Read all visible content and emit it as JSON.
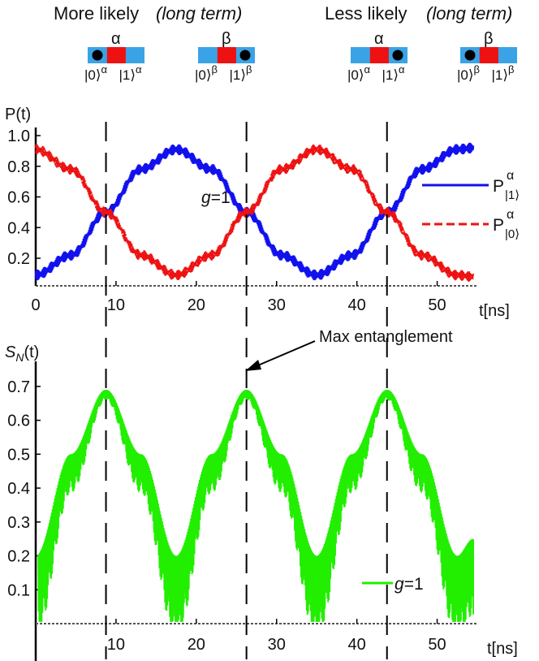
{
  "header": {
    "left": {
      "text": "More likely",
      "note": "(long term)"
    },
    "right": {
      "text": "Less likely",
      "note": "(long term)"
    }
  },
  "diagrams": [
    {
      "label": "α",
      "ket0": "|0⟩",
      "ket0_sup": "α",
      "ket1": "|1⟩",
      "ket1_sup": "α",
      "ball_state": "0"
    },
    {
      "label": "β",
      "ket0": "|0⟩",
      "ket0_sup": "β",
      "ket1": "|1⟩",
      "ket1_sup": "β",
      "ball_state": "1"
    },
    {
      "label": "α",
      "ket0": "|0⟩",
      "ket0_sup": "α",
      "ket1": "|1⟩",
      "ket1_sup": "α",
      "ball_state": "1"
    },
    {
      "label": "β",
      "ket0": "|0⟩",
      "ket0_sup": "β",
      "ket1": "|1⟩",
      "ket1_sup": "β",
      "ball_state": "0"
    }
  ],
  "colors": {
    "box_blue": "#3aa3e6",
    "box_red": "#ee1111",
    "ball": "#000000"
  },
  "chart_data": [
    {
      "type": "line",
      "ylabel": "P(t)",
      "xlabel": "t[ns]",
      "xlim": [
        0,
        55
      ],
      "ylim": [
        0.02,
        1.0
      ],
      "xticks": [
        "0",
        "10",
        "20",
        "30",
        "40",
        "50"
      ],
      "yticks": [
        "0.2",
        "0.4",
        "0.6",
        "0.8",
        "1.0"
      ],
      "annotation": "g=1",
      "period_ns": 35,
      "oscillation_band": 0.07,
      "series": [
        {
          "name": "P|1⟩α",
          "style": "solid",
          "color": "#1111ee",
          "x": [
            0,
            4.4,
            8.75,
            13.1,
            17.5,
            21.9,
            26.25,
            30.6,
            35,
            39.4,
            43.75,
            48.1,
            52.5,
            54.5
          ],
          "y": [
            0.09,
            0.22,
            0.5,
            0.78,
            0.91,
            0.78,
            0.5,
            0.22,
            0.09,
            0.22,
            0.5,
            0.78,
            0.91,
            0.92
          ]
        },
        {
          "name": "P|0⟩α",
          "style": "dashed",
          "color": "#ee1111",
          "x": [
            0,
            4.4,
            8.75,
            13.1,
            17.5,
            21.9,
            26.25,
            30.6,
            35,
            39.4,
            43.75,
            48.1,
            52.5,
            54.5
          ],
          "y": [
            0.91,
            0.78,
            0.5,
            0.22,
            0.09,
            0.22,
            0.5,
            0.78,
            0.91,
            0.78,
            0.5,
            0.22,
            0.09,
            0.08
          ]
        }
      ],
      "legend": [
        {
          "label": "P",
          "sub": "|1⟩",
          "sup": "α"
        },
        {
          "label": "P",
          "sub": "|0⟩",
          "sup": "α"
        }
      ]
    },
    {
      "type": "line",
      "ylabel": "S",
      "ylabel_sub": "N",
      "ylabel_suffix": "(t)",
      "xlabel": "t[ns]",
      "xlim": [
        0,
        55
      ],
      "ylim": [
        0.0,
        0.75
      ],
      "xticks": [
        "10",
        "20",
        "30",
        "40",
        "50"
      ],
      "yticks": [
        "0.1",
        "0.2",
        "0.3",
        "0.4",
        "0.5",
        "0.6",
        "0.7"
      ],
      "annotation": "Max entanglement",
      "series": [
        {
          "name": "g=1",
          "style": "solid",
          "color": "#22ee00",
          "x": [
            0,
            4.4,
            8.75,
            13.1,
            17.5,
            21.9,
            26.25,
            30.6,
            35,
            39.4,
            43.75,
            48.1,
            52.5,
            54.5
          ],
          "y": [
            0.2,
            0.5,
            0.69,
            0.5,
            0.2,
            0.5,
            0.69,
            0.5,
            0.2,
            0.5,
            0.69,
            0.5,
            0.2,
            0.25
          ]
        }
      ],
      "legend": [
        {
          "label": "g",
          "suffix": "=1"
        }
      ]
    }
  ],
  "guide_lines_ns": [
    8.75,
    26.25,
    43.75
  ]
}
